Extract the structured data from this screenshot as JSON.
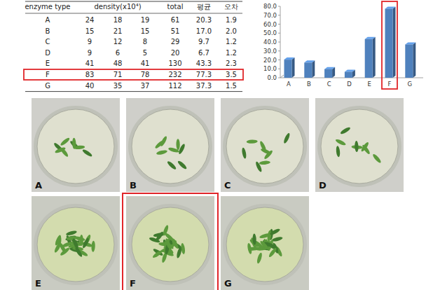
{
  "table": {
    "header": [
      "enzyme type",
      "density(x10⁴)",
      "total",
      "평균",
      "오차"
    ],
    "rows": [
      [
        "A",
        "24",
        "18",
        "19",
        "61",
        "20.3",
        "1.9"
      ],
      [
        "B",
        "15",
        "21",
        "15",
        "51",
        "17.0",
        "2.0"
      ],
      [
        "C",
        "9",
        "12",
        "8",
        "29",
        "9.7",
        "1.2"
      ],
      [
        "D",
        "9",
        "6",
        "5",
        "20",
        "6.7",
        "1.2"
      ],
      [
        "E",
        "41",
        "48",
        "41",
        "130",
        "43.3",
        "2.3"
      ],
      [
        "F",
        "83",
        "71",
        "78",
        "232",
        "77.3",
        "3.5"
      ],
      [
        "G",
        "40",
        "35",
        "37",
        "112",
        "37.3",
        "1.5"
      ]
    ]
  },
  "chart_data": {
    "type": "bar",
    "categories": [
      "A",
      "B",
      "C",
      "D",
      "E",
      "F",
      "G"
    ],
    "values": [
      20.3,
      17.0,
      9.7,
      6.7,
      43.3,
      77.3,
      37.3
    ],
    "color": "#4f81bd",
    "ylim": [
      0,
      80
    ],
    "yticks": [
      {
        "value": 0,
        "label": "0.0"
      },
      {
        "value": 10,
        "label": "10.0"
      },
      {
        "value": 20,
        "label": "20.0"
      },
      {
        "value": 30,
        "label": "30.0"
      },
      {
        "value": 40,
        "label": "40.0"
      },
      {
        "value": 50,
        "label": "50.0"
      },
      {
        "value": 60,
        "label": "60.0"
      },
      {
        "value": 70,
        "label": "70.0"
      },
      {
        "value": 80,
        "label": "80.0"
      }
    ],
    "grid": false
  },
  "photos": [
    "A",
    "B",
    "C",
    "D",
    "E",
    "F",
    "G"
  ],
  "highlight": "F"
}
